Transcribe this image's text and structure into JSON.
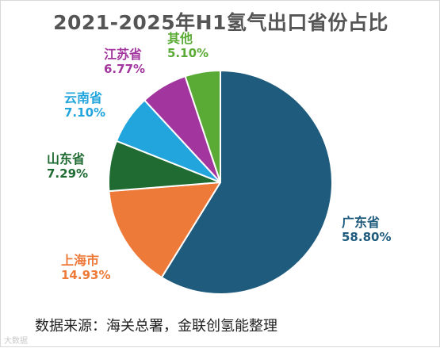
{
  "chart_data": {
    "type": "pie",
    "title": "2021-2025年H1氢气出口省份占比",
    "categories": [
      "广东省",
      "上海市",
      "山东省",
      "云南省",
      "江苏省",
      "其他"
    ],
    "values": [
      58.8,
      14.93,
      7.29,
      7.1,
      6.77,
      5.1
    ],
    "value_labels": [
      "58.80%",
      "14.93%",
      "7.29%",
      "7.10%",
      "6.77%",
      "5.10%"
    ],
    "colors": [
      "#1f5b7d",
      "#ee7a3a",
      "#1f6b32",
      "#22a5dc",
      "#a3369e",
      "#5aab35"
    ],
    "label_colors": [
      "#1f5b7d",
      "#ee7a3a",
      "#1f6b32",
      "#22a5dc",
      "#a3369e",
      "#5aab35"
    ],
    "start": "12 o'clock",
    "direction": "clockwise",
    "legend": "none"
  },
  "footer": {
    "source": "数据来源：海关总署，金联创氢能整理"
  },
  "watermark": {
    "text": "大数据"
  }
}
